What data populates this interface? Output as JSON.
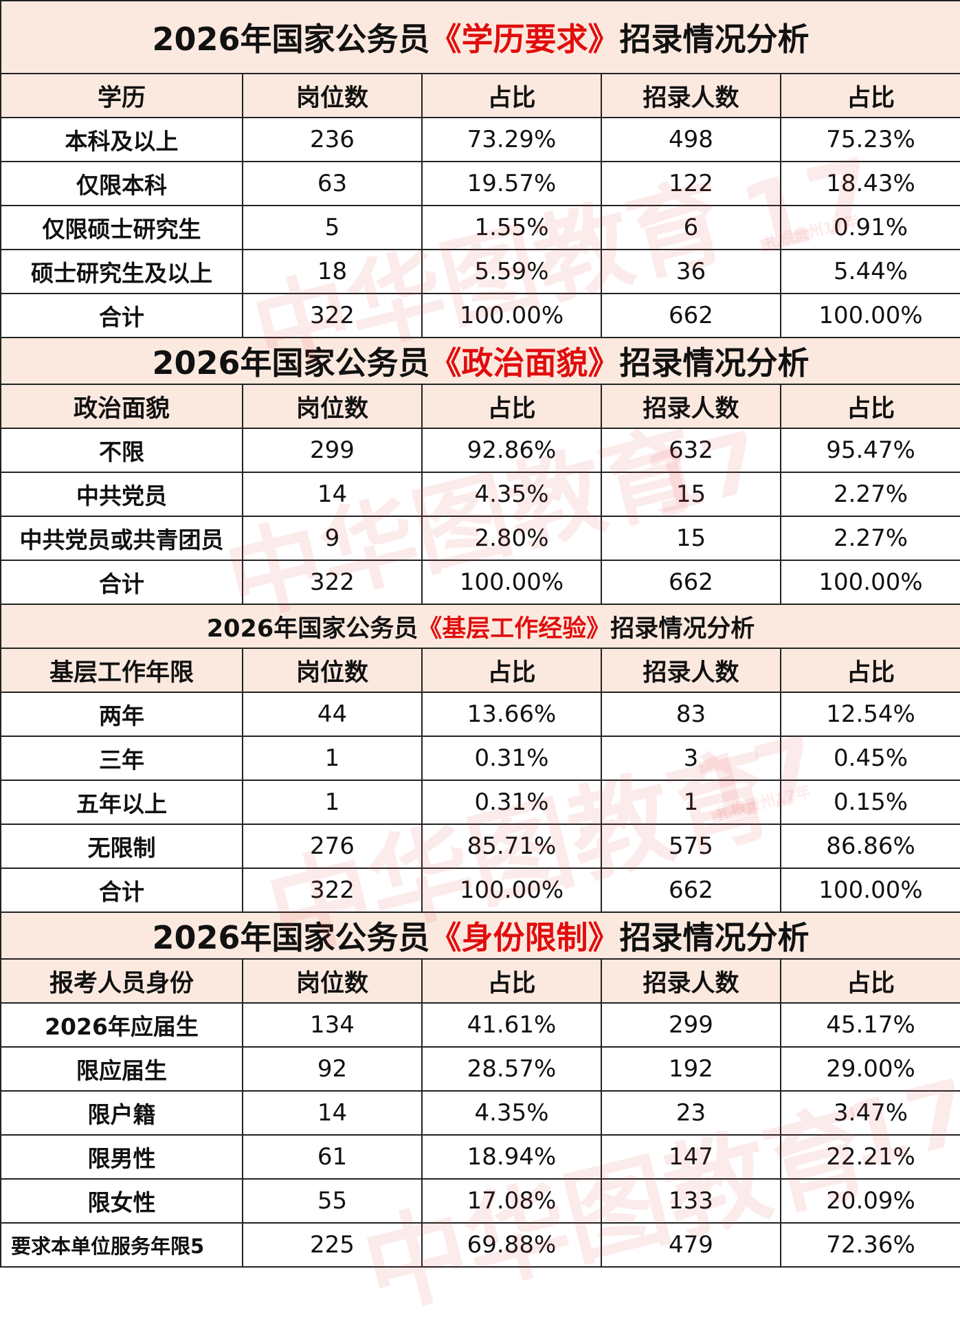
{
  "header_labels": {
    "jobs": "岗位数",
    "ratio": "占比",
    "people": "招录人数"
  },
  "sections": [
    {
      "title_pre": "2026年国家公务员",
      "title_key": "《学历要求》",
      "title_post": "招录情况分析",
      "first_col_header": "学历",
      "rows": [
        [
          "本科及以上",
          "236",
          "73.29%",
          "498",
          "75.23%"
        ],
        [
          "仅限本科",
          "63",
          "19.57%",
          "122",
          "18.43%"
        ],
        [
          "仅限硕士研究生",
          "5",
          "1.55%",
          "6",
          "0.91%"
        ],
        [
          "硕士研究生及以上",
          "18",
          "5.59%",
          "36",
          "5.44%"
        ],
        [
          "合计",
          "322",
          "100.00%",
          "662",
          "100.00%"
        ]
      ]
    },
    {
      "title_pre": "2026年国家公务员",
      "title_key": "《政治面貌》",
      "title_post": "招录情况分析",
      "first_col_header": "政治面貌",
      "rows": [
        [
          "不限",
          "299",
          "92.86%",
          "632",
          "95.47%"
        ],
        [
          "中共党员",
          "14",
          "4.35%",
          "15",
          "2.27%"
        ],
        [
          "中共党员或共青团员",
          "9",
          "2.80%",
          "15",
          "2.27%"
        ],
        [
          "合计",
          "322",
          "100.00%",
          "662",
          "100.00%"
        ]
      ]
    },
    {
      "title_pre": "2026年国家公务员",
      "title_key": "《基层工作经验》",
      "title_post": "招录情况分析",
      "first_col_header": "基层工作年限",
      "rows": [
        [
          "两年",
          "44",
          "13.66%",
          "83",
          "12.54%"
        ],
        [
          "三年",
          "1",
          "0.31%",
          "3",
          "0.45%"
        ],
        [
          "五年以上",
          "1",
          "0.31%",
          "1",
          "0.15%"
        ],
        [
          "无限制",
          "276",
          "85.71%",
          "575",
          "86.86%"
        ],
        [
          "合计",
          "322",
          "100.00%",
          "662",
          "100.00%"
        ]
      ]
    },
    {
      "title_pre": "2026年国家公务员",
      "title_key": "《身份限制》",
      "title_post": "招录情况分析",
      "first_col_header": "报考人员身份",
      "rows": [
        [
          "2026年应届生",
          "134",
          "41.61%",
          "299",
          "45.17%"
        ],
        [
          "限应届生",
          "92",
          "28.57%",
          "192",
          "29.00%"
        ],
        [
          "限户籍",
          "14",
          "4.35%",
          "23",
          "3.47%"
        ],
        [
          "限男性",
          "61",
          "18.94%",
          "147",
          "22.21%"
        ],
        [
          "限女性",
          "55",
          "17.08%",
          "133",
          "20.09%"
        ],
        [
          "要求本单位服务年限5",
          "225",
          "69.88%",
          "479",
          "72.36%"
        ]
      ]
    }
  ],
  "watermark": {
    "brand": "中华图教育",
    "badge": "17",
    "tagline": "扎根贵州17年"
  },
  "colors": {
    "title_bg": "#fbe9df",
    "accent_red": "#e10d0d",
    "border": "#222222"
  }
}
